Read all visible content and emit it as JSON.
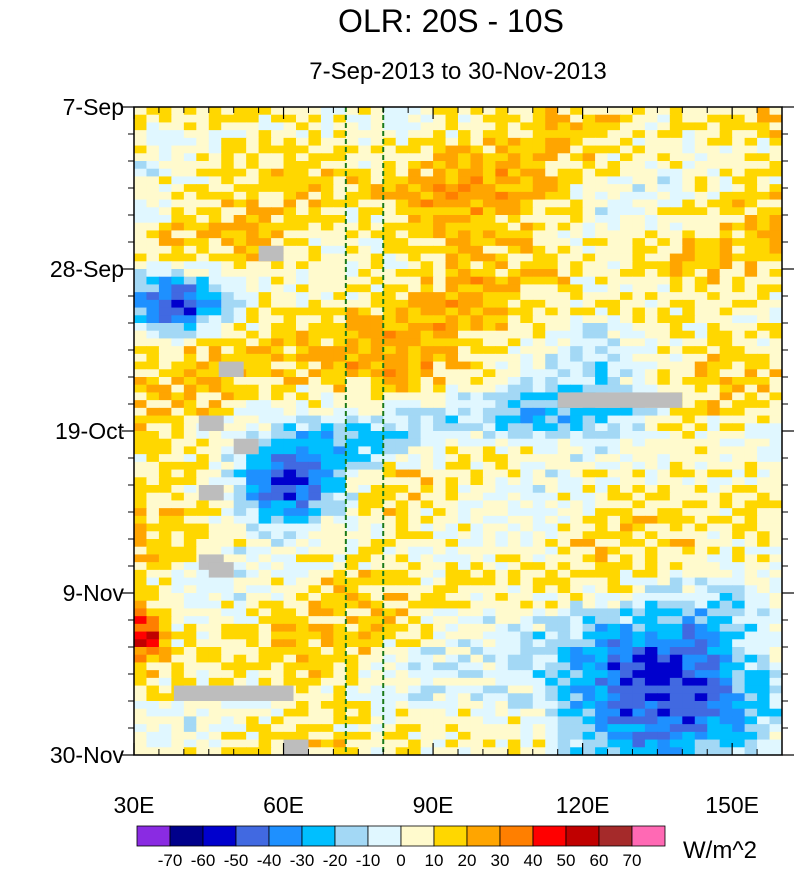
{
  "chart_data": {
    "type": "heatmap",
    "title": "OLR: 20S - 10S",
    "subtitle": "7-Sep-2013 to 30-Nov-2013",
    "x_axis": {
      "range": [
        30,
        160
      ],
      "ticks": [
        30,
        60,
        90,
        120,
        150
      ],
      "tick_labels": [
        "30E",
        "60E",
        "90E",
        "120E",
        "150E"
      ]
    },
    "y_axis": {
      "range_days_since_7sep": [
        0,
        84
      ],
      "ticks": [
        0,
        21,
        42,
        63,
        84
      ],
      "tick_labels": [
        "7-Sep",
        "28-Sep",
        "19-Oct",
        "9-Nov",
        "30-Nov"
      ],
      "direction": "time increases downward"
    },
    "reference_lines_longitude": [
      72.5,
      80
    ],
    "colorbar": {
      "levels": [
        -70,
        -60,
        -50,
        -40,
        -30,
        -20,
        -10,
        0,
        10,
        20,
        30,
        40,
        50,
        60,
        70
      ],
      "level_labels": [
        "-70",
        "-60",
        "-50",
        "-40",
        "-30",
        "-20",
        "-10",
        "0",
        "10",
        "20",
        "30",
        "40",
        "50",
        "60",
        "70"
      ],
      "colors": [
        "#8a2be2",
        "#00008b",
        "#0000cd",
        "#4169e1",
        "#1e90ff",
        "#00bfff",
        "#a3d8f5",
        "#e0f7ff",
        "#fffacd",
        "#ffd700",
        "#ffa500",
        "#ff7f00",
        "#ff0000",
        "#c00000",
        "#a52a2a",
        "#ff69b4"
      ],
      "units": "W/m^2"
    },
    "anomaly_features": [
      {
        "lon": [
          30,
          48
        ],
        "day": [
          23,
          28
        ],
        "value": -60
      },
      {
        "lon": [
          52,
          72
        ],
        "day": [
          45,
          53
        ],
        "value": -60
      },
      {
        "lon": [
          64,
          92
        ],
        "day": [
          40,
          46
        ],
        "value": -40
      },
      {
        "lon": [
          88,
          115
        ],
        "day": [
          38,
          42
        ],
        "value": -30
      },
      {
        "lon": [
          108,
          160
        ],
        "day": [
          66,
          84
        ],
        "value": -60
      },
      {
        "lon": [
          112,
          138
        ],
        "day": [
          34,
          44
        ],
        "value": -30
      },
      {
        "lon": [
          30,
          34
        ],
        "day": [
          66,
          70
        ],
        "value": 45
      },
      {
        "lon": [
          80,
          110
        ],
        "day": [
          7,
          20
        ],
        "value": 15
      },
      {
        "lon": [
          60,
          95
        ],
        "day": [
          25,
          45
        ],
        "value": 15
      }
    ],
    "missing_data_blocks": [
      {
        "lon": [
          55,
          60
        ],
        "day": [
          18,
          20
        ]
      },
      {
        "lon": [
          47,
          52
        ],
        "day": [
          33,
          35
        ]
      },
      {
        "lon": [
          43,
          48
        ],
        "day": [
          40,
          42
        ]
      },
      {
        "lon": [
          50,
          55
        ],
        "day": [
          43,
          45
        ]
      },
      {
        "lon": [
          43,
          48
        ],
        "day": [
          49,
          51
        ]
      },
      {
        "lon": [
          43,
          48
        ],
        "day": [
          58,
          60
        ]
      },
      {
        "lon": [
          45,
          50
        ],
        "day": [
          59,
          61
        ]
      },
      {
        "lon": [
          38,
          62
        ],
        "day": [
          75,
          77
        ]
      },
      {
        "lon": [
          60,
          65
        ],
        "day": [
          82,
          84
        ]
      },
      {
        "lon": [
          115,
          140
        ],
        "day": [
          37,
          39
        ]
      }
    ]
  }
}
